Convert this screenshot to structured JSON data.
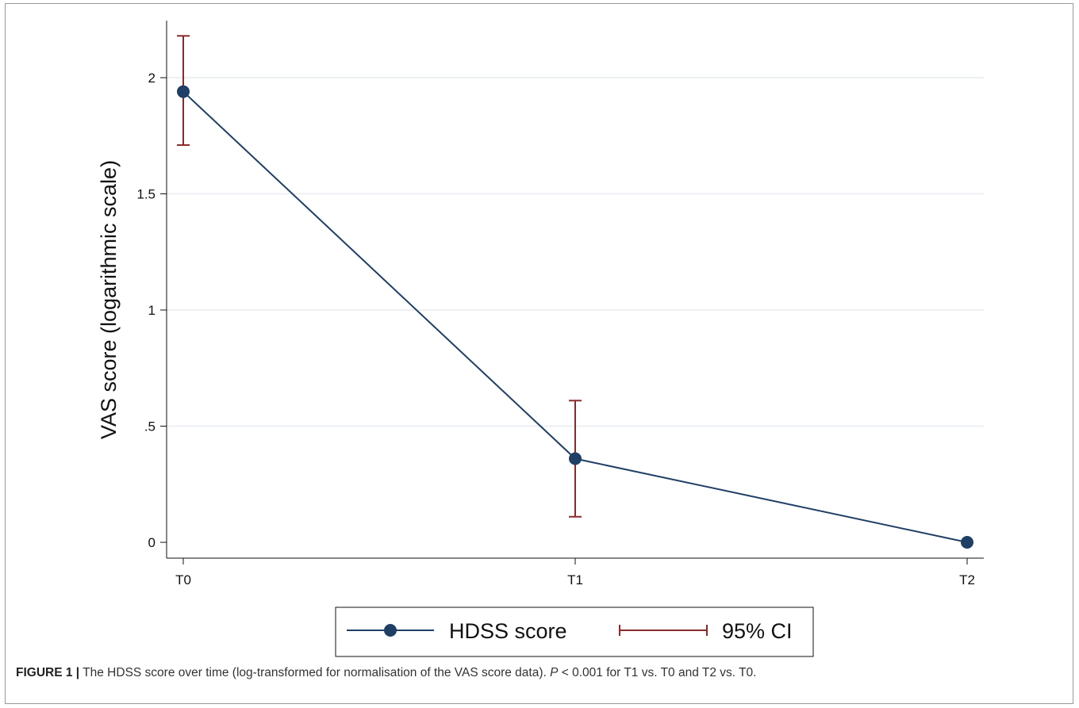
{
  "chart_data": {
    "type": "line",
    "categories": [
      "T0",
      "T1",
      "T2"
    ],
    "series": [
      {
        "name": "HDSS score",
        "values": [
          1.94,
          0.36,
          0.0
        ]
      }
    ],
    "ci": {
      "name": "95% CI",
      "lower": [
        1.71,
        0.11,
        null
      ],
      "upper": [
        2.18,
        0.61,
        null
      ]
    },
    "ylabel": "VAS score (logarithmic scale)",
    "xlabel": "",
    "ylim": [
      0,
      2.2
    ],
    "yticks": [
      0,
      0.5,
      1,
      1.5,
      2
    ],
    "ytick_labels": [
      "0",
      ".5",
      "1",
      "1.5",
      "2"
    ],
    "grid": true,
    "legend_position": "bottom",
    "colors": {
      "line": "#1f3f66",
      "marker": "#1f3f66",
      "ci": "#8b2a2a",
      "grid": "#e6ecef",
      "axis": "#111111"
    }
  },
  "caption": {
    "lead": "FIGURE 1 |",
    "text_1": " The HDSS score over time (log-transformed for normalisation of the VAS score data). ",
    "p_symbol": "P",
    "text_2": " < 0.001 for T1 vs. T0 and T2 vs. T0."
  }
}
